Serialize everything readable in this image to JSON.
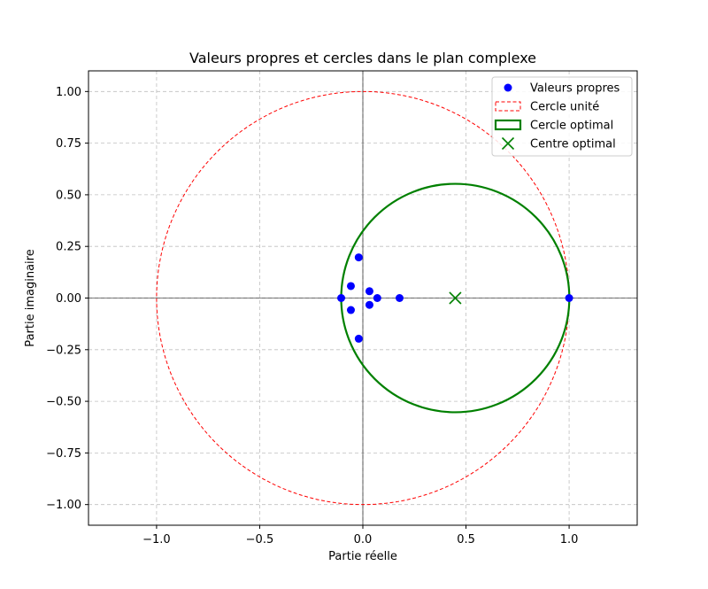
{
  "chart_data": {
    "type": "scatter",
    "title": "Valeurs propres et cercles dans le plan complexe",
    "xlabel": "Partie réelle",
    "ylabel": "Partie imaginaire",
    "xlim": [
      -1.33,
      1.33
    ],
    "ylim": [
      -1.1,
      1.1
    ],
    "xticks": [
      -1.0,
      -0.5,
      0.0,
      0.5,
      1.0
    ],
    "xtick_labels": [
      "−1.0",
      "−0.5",
      "0.0",
      "0.5",
      "1.0"
    ],
    "yticks": [
      -1.0,
      -0.75,
      -0.5,
      -0.25,
      0.0,
      0.25,
      0.5,
      0.75,
      1.0
    ],
    "ytick_labels": [
      "−1.00",
      "−0.75",
      "−0.50",
      "−0.25",
      "0.00",
      "0.25",
      "0.50",
      "0.75",
      "1.00"
    ],
    "grid": true,
    "legend_position": "top-right",
    "series": [
      {
        "name": "Valeurs propres",
        "kind": "scatter",
        "color": "#0000ff",
        "points": [
          [
            -0.105,
            0.0
          ],
          [
            -0.02,
            0.197
          ],
          [
            -0.02,
            -0.197
          ],
          [
            -0.058,
            0.058
          ],
          [
            -0.058,
            -0.058
          ],
          [
            0.032,
            0.033
          ],
          [
            0.032,
            -0.033
          ],
          [
            0.07,
            0.0
          ],
          [
            0.178,
            0.0
          ],
          [
            1.0,
            0.0
          ]
        ]
      },
      {
        "name": "Cercle unité",
        "kind": "circle",
        "center": [
          0.0,
          0.0
        ],
        "radius": 1.0,
        "color": "#ff0000",
        "style": "dashed"
      },
      {
        "name": "Cercle optimal",
        "kind": "circle",
        "center": [
          0.448,
          0.0
        ],
        "radius": 0.553,
        "color": "#008000",
        "style": "solid"
      },
      {
        "name": "Centre optimal",
        "kind": "marker",
        "points": [
          [
            0.448,
            0.0
          ]
        ],
        "color": "#008000",
        "marker": "x"
      }
    ]
  }
}
